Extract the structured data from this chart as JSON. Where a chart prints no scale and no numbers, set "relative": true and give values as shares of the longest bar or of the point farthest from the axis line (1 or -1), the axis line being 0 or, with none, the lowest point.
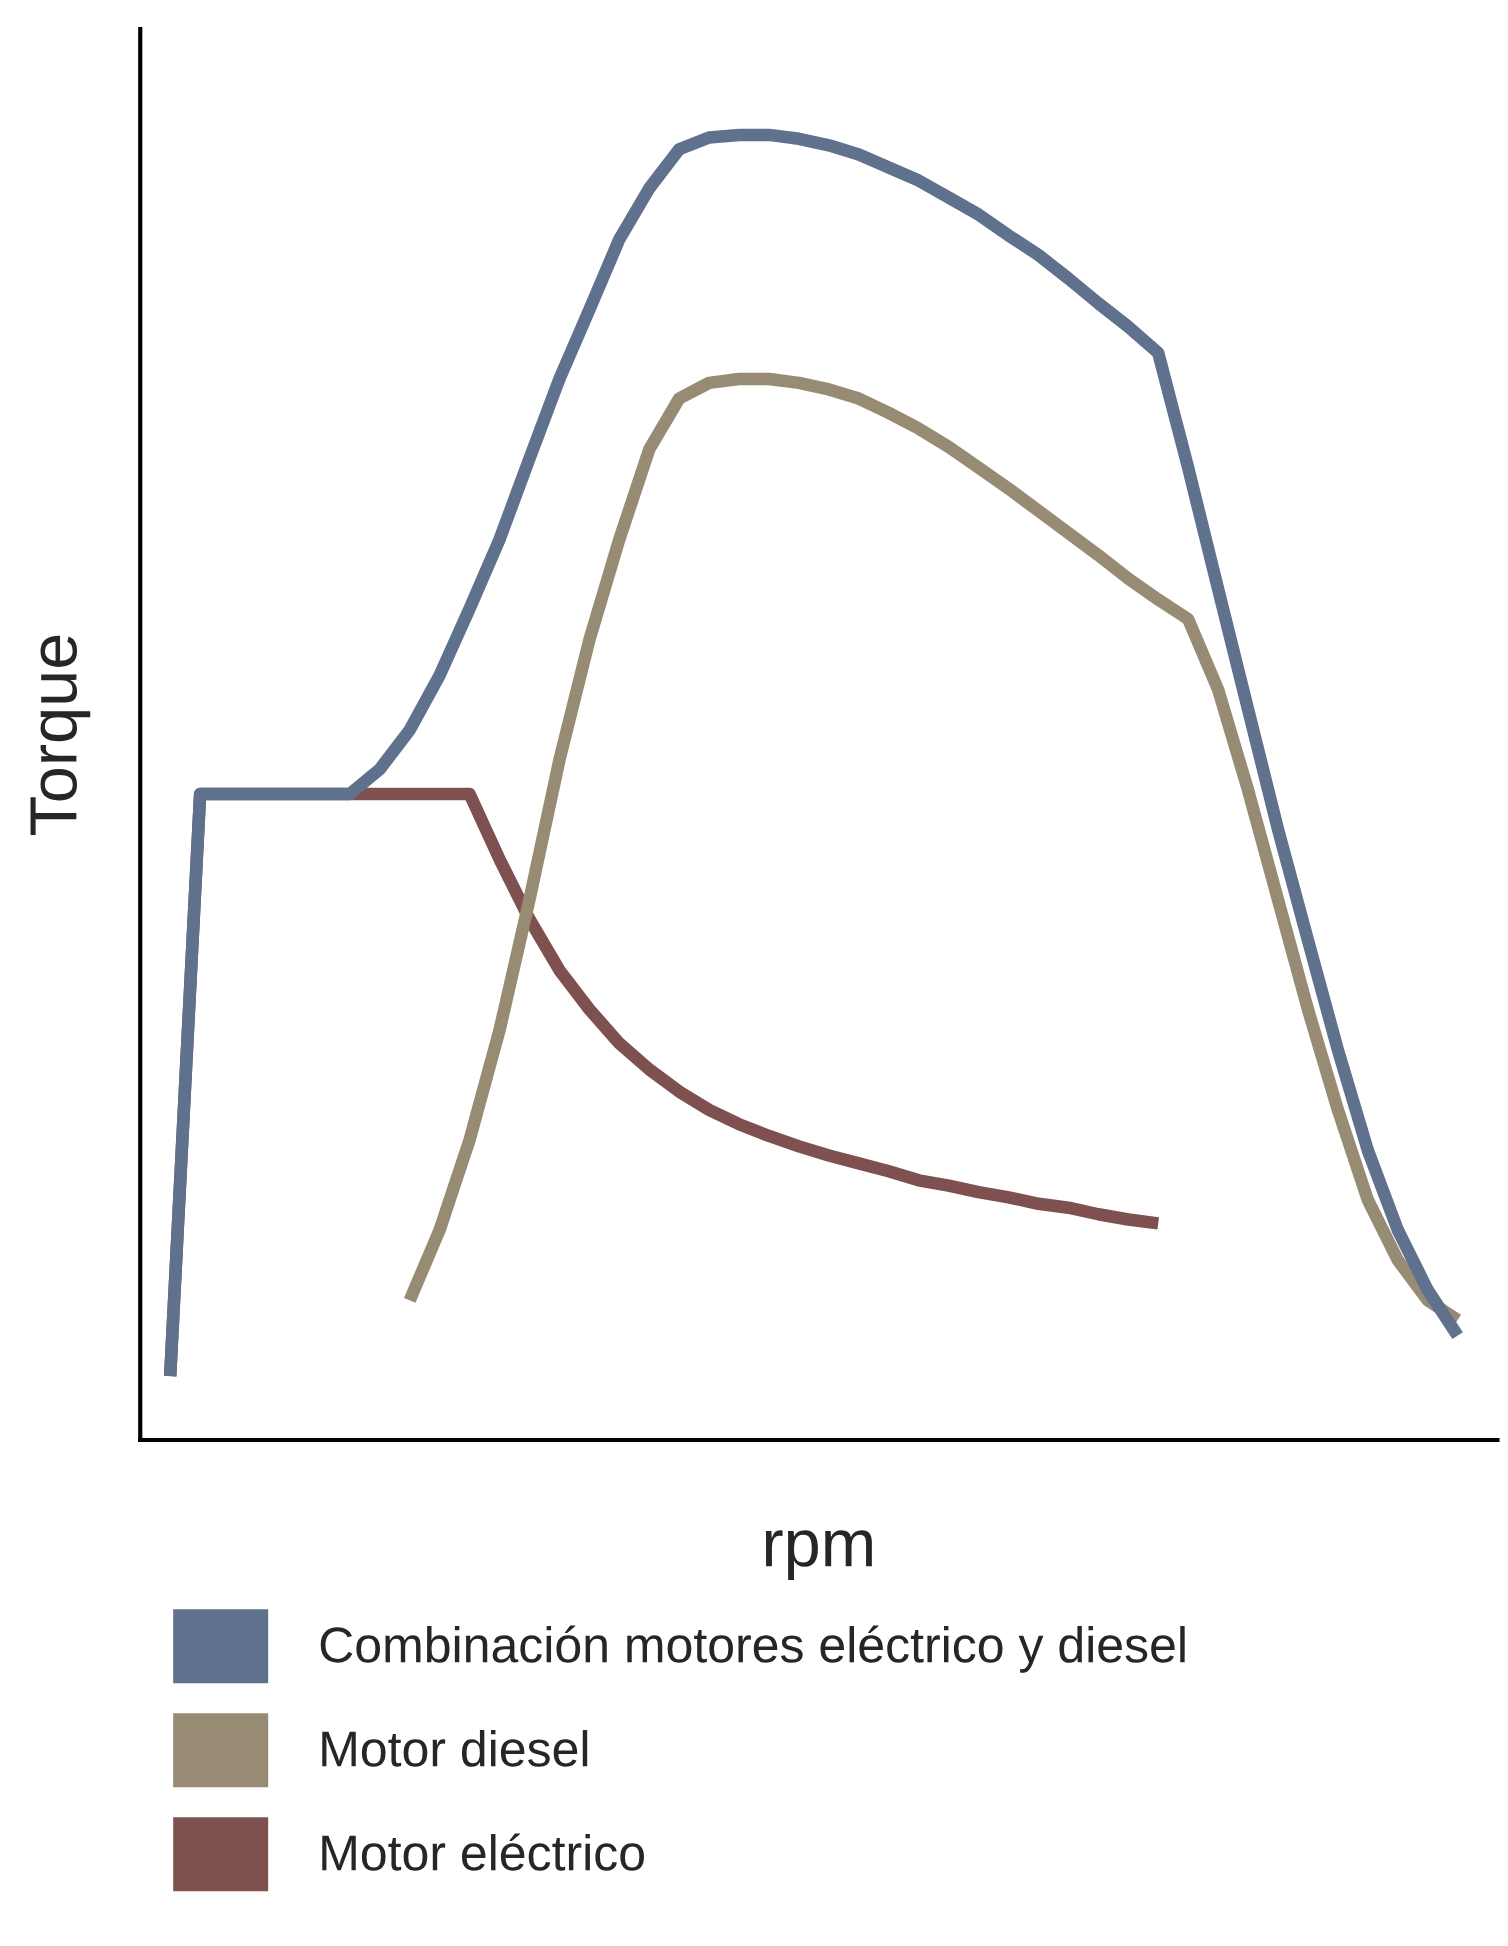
{
  "chart_data": {
    "type": "line",
    "relative": true,
    "xlabel": "rpm",
    "ylabel": "Torque",
    "legend": "bottom",
    "tick_labels": false,
    "marker": "none",
    "line_style": "solid",
    "categories": [
      null,
      null,
      null,
      null,
      null,
      null,
      null,
      null,
      null,
      null,
      null,
      null,
      null,
      null,
      null,
      null,
      null,
      null,
      null,
      null,
      null,
      null,
      null,
      null,
      null,
      null,
      null,
      null,
      null,
      null,
      null,
      null,
      null,
      null,
      null,
      null,
      null,
      null,
      null,
      null,
      null,
      null,
      null,
      null
    ],
    "series": [
      {
        "name": "Combinación motores eléctrico y diesel",
        "color": "#5f718c",
        "values": [
          0.049,
          0.495,
          0.495,
          0.495,
          0.495,
          0.495,
          0.495,
          0.514,
          0.544,
          0.586,
          0.637,
          0.69,
          0.752,
          0.813,
          0.866,
          0.92,
          0.959,
          0.989,
          0.998,
          1,
          1,
          0.997,
          0.992,
          0.985,
          0.975,
          0.965,
          0.952,
          0.939,
          0.923,
          0.908,
          0.89,
          0.871,
          0.853,
          0.833,
          0.745,
          0.652,
          0.56,
          0.468,
          0.383,
          0.299,
          0.222,
          0.161,
          0.115,
          0.08
        ]
      },
      {
        "name": "Motor diesel",
        "color": "#978c73",
        "values": [
          null,
          null,
          null,
          null,
          null,
          null,
          null,
          null,
          0.107,
          0.161,
          0.23,
          0.314,
          0.414,
          0.521,
          0.613,
          0.69,
          0.759,
          0.798,
          0.81,
          0.813,
          0.813,
          0.81,
          0.805,
          0.798,
          0.787,
          0.775,
          0.761,
          0.745,
          0.729,
          0.712,
          0.695,
          0.678,
          0.66,
          0.644,
          0.629,
          0.575,
          0.498,
          0.414,
          0.33,
          0.253,
          0.184,
          0.138,
          0.107,
          0.092
        ]
      },
      {
        "name": "Motor eléctrico",
        "color": "#7f5050",
        "values": [
          0.049,
          0.495,
          0.495,
          0.495,
          0.495,
          0.495,
          0.495,
          0.495,
          0.495,
          0.495,
          0.495,
          0.445,
          0.399,
          0.36,
          0.33,
          0.304,
          0.284,
          0.267,
          0.253,
          0.242,
          0.233,
          0.225,
          0.218,
          0.212,
          0.206,
          0.199,
          0.195,
          0.19,
          0.186,
          0.181,
          0.178,
          0.173,
          0.169,
          0.166,
          null,
          null,
          null,
          null,
          null,
          null,
          null,
          null,
          null,
          null
        ]
      }
    ]
  }
}
